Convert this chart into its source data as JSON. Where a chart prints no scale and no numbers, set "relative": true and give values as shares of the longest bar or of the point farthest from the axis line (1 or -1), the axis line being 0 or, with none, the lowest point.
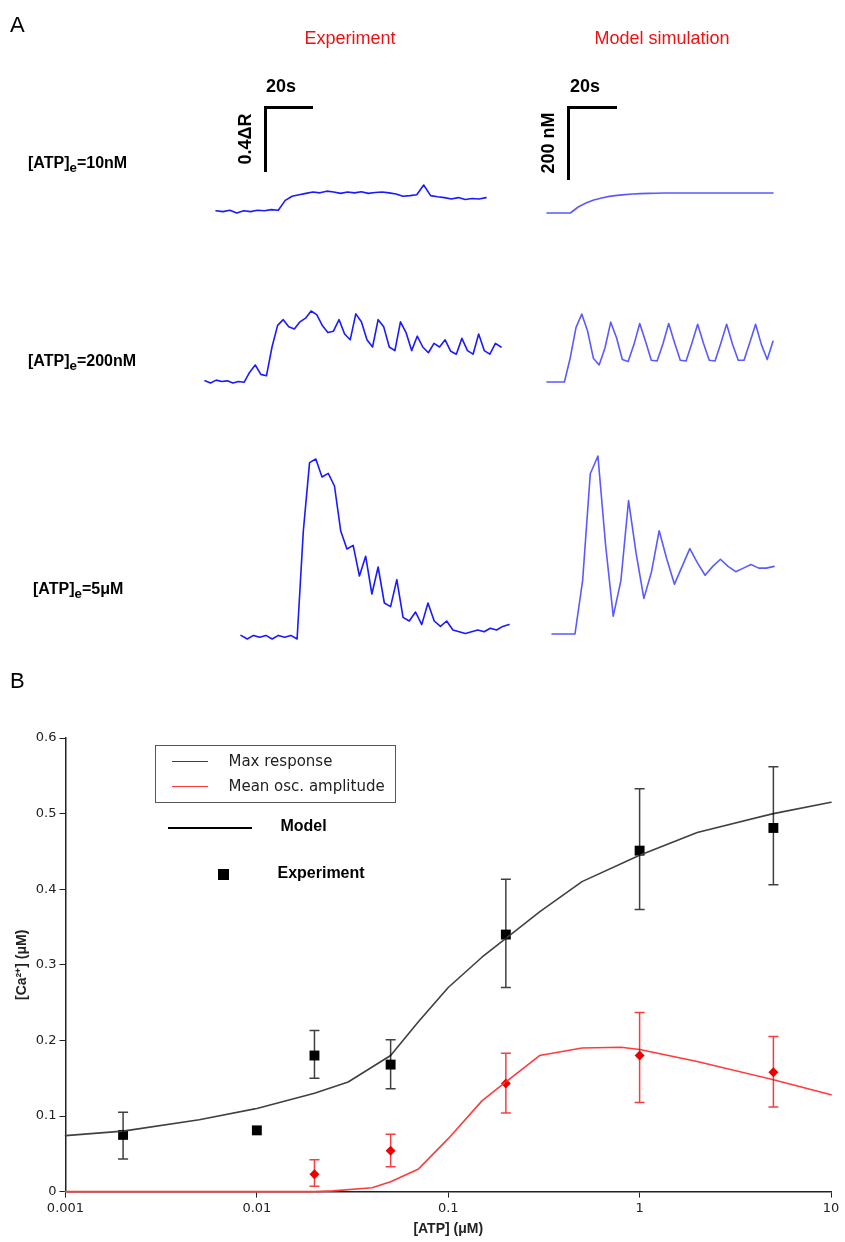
{
  "chart_data": [
    {
      "type": "line",
      "relative": true,
      "title": "Experiment",
      "ylabel": "[ATP]$_{e}$=10nM",
      "annotations": [
        "A",
        "20s",
        "0.4ΔR"
      ],
      "marker": "none",
      "categories": [
        null,
        null,
        null,
        null,
        null,
        null,
        null,
        null,
        null,
        null,
        null,
        null,
        null,
        null,
        null,
        null,
        null,
        null,
        null,
        null,
        null,
        null,
        null,
        null,
        null,
        null,
        null,
        null,
        null,
        null,
        null,
        null,
        null,
        null,
        null,
        null,
        null,
        null,
        null,
        null
      ],
      "series": [
        {
          "color": "#1a1aff",
          "values": [
            0.08,
            0.05,
            0.1,
            0.0,
            0.08,
            0.05,
            0.1,
            0.08,
            0.12,
            0.1,
            0.45,
            0.6,
            0.65,
            0.7,
            0.75,
            0.72,
            0.78,
            0.75,
            0.7,
            0.75,
            0.72,
            0.76,
            0.7,
            0.73,
            0.75,
            0.72,
            0.68,
            0.6,
            0.62,
            0.65,
            1.0,
            0.62,
            0.58,
            0.55,
            0.5,
            0.55,
            0.48,
            0.52,
            0.5,
            0.55
          ]
        }
      ]
    },
    {
      "type": "line",
      "relative": true,
      "title": "Model simulation",
      "annotations": [
        "20s",
        "200 nM"
      ],
      "marker": "none",
      "categories": [
        null,
        null,
        null,
        null,
        null,
        null,
        null,
        null,
        null,
        null,
        null,
        null,
        null,
        null,
        null,
        null,
        null,
        null,
        null,
        null,
        null,
        null,
        null,
        null,
        null,
        null,
        null,
        null,
        null,
        null
      ],
      "series": [
        {
          "color": "#5a5aff",
          "values": [
            0,
            0,
            0,
            0,
            0.3,
            0.5,
            0.65,
            0.75,
            0.83,
            0.88,
            0.92,
            0.95,
            0.97,
            0.98,
            0.99,
            1,
            1,
            1,
            1,
            1,
            1,
            1,
            1,
            1,
            1,
            1,
            1,
            1,
            1,
            1
          ]
        }
      ]
    },
    {
      "type": "line",
      "relative": true,
      "ylabel": "[ATP]$_{e}$=200nM",
      "marker": "none",
      "categories": [
        null,
        null,
        null,
        null,
        null,
        null,
        null,
        null,
        null,
        null,
        null,
        null,
        null,
        null,
        null,
        null,
        null,
        null,
        null,
        null,
        null,
        null,
        null,
        null,
        null,
        null,
        null,
        null,
        null,
        null,
        null,
        null,
        null,
        null,
        null,
        null,
        null,
        null,
        null,
        null,
        null,
        null,
        null,
        null,
        null,
        null,
        null,
        null,
        null,
        null,
        null,
        null,
        null,
        null
      ],
      "series": [
        {
          "color": "#1a1aff",
          "values": [
            0.03,
            0.0,
            0.04,
            0.02,
            0.03,
            0.0,
            0.02,
            0.01,
            0.15,
            0.25,
            0.12,
            0.1,
            0.5,
            0.8,
            0.88,
            0.78,
            0.75,
            0.85,
            0.9,
            1.0,
            0.95,
            0.8,
            0.7,
            0.72,
            0.88,
            0.68,
            0.6,
            0.96,
            0.85,
            0.6,
            0.5,
            0.88,
            0.78,
            0.5,
            0.45,
            0.85,
            0.7,
            0.45,
            0.65,
            0.5,
            0.42,
            0.55,
            0.5,
            0.6,
            0.44,
            0.4,
            0.62,
            0.45,
            0.4,
            0.68,
            0.45,
            0.4,
            0.55,
            0.5
          ]
        }
      ]
    },
    {
      "type": "line",
      "relative": true,
      "marker": "none",
      "categories": [
        null,
        null,
        null,
        null,
        null,
        null,
        null,
        null,
        null,
        null,
        null,
        null,
        null,
        null,
        null,
        null,
        null,
        null,
        null,
        null,
        null,
        null,
        null,
        null,
        null,
        null,
        null,
        null,
        null,
        null,
        null,
        null,
        null,
        null,
        null,
        null,
        null,
        null,
        null,
        null
      ],
      "series": [
        {
          "color": "#5a5aff",
          "values": [
            0,
            0,
            0,
            0,
            0.35,
            0.8,
            1.0,
            0.75,
            0.35,
            0.25,
            0.5,
            0.88,
            0.65,
            0.33,
            0.3,
            0.55,
            0.86,
            0.6,
            0.32,
            0.31,
            0.56,
            0.86,
            0.58,
            0.32,
            0.31,
            0.57,
            0.85,
            0.57,
            0.32,
            0.31,
            0.57,
            0.85,
            0.56,
            0.32,
            0.32,
            0.58,
            0.85,
            0.55,
            0.33,
            0.6
          ]
        }
      ]
    },
    {
      "type": "line",
      "relative": true,
      "ylabel": "[ATP]$_{e}$=5μM",
      "marker": "none",
      "categories": [
        null,
        null,
        null,
        null,
        null,
        null,
        null,
        null,
        null,
        null,
        null,
        null,
        null,
        null,
        null,
        null,
        null,
        null,
        null,
        null,
        null,
        null,
        null,
        null,
        null,
        null,
        null,
        null,
        null,
        null,
        null,
        null,
        null,
        null,
        null,
        null,
        null,
        null,
        null,
        null,
        null,
        null,
        null,
        null
      ],
      "series": [
        {
          "color": "#1a1aff",
          "values": [
            0.02,
            0.0,
            0.02,
            0.01,
            0.02,
            0.0,
            0.02,
            0.01,
            0.02,
            0.0,
            0.6,
            0.98,
            1.0,
            0.9,
            0.92,
            0.85,
            0.6,
            0.5,
            0.52,
            0.35,
            0.46,
            0.25,
            0.4,
            0.2,
            0.18,
            0.33,
            0.12,
            0.1,
            0.15,
            0.08,
            0.2,
            0.1,
            0.07,
            0.1,
            0.05,
            0.04,
            0.03,
            0.04,
            0.05,
            0.04,
            0.06,
            0.05,
            0.07,
            0.08
          ]
        }
      ]
    },
    {
      "type": "line",
      "relative": true,
      "marker": "none",
      "categories": [
        null,
        null,
        null,
        null,
        null,
        null,
        null,
        null,
        null,
        null,
        null,
        null,
        null,
        null,
        null,
        null,
        null,
        null,
        null,
        null,
        null,
        null,
        null,
        null,
        null,
        null,
        null,
        null,
        null,
        null
      ],
      "series": [
        {
          "color": "#5a5aff",
          "values": [
            0,
            0,
            0,
            0,
            0.3,
            0.9,
            1.0,
            0.5,
            0.1,
            0.3,
            0.75,
            0.45,
            0.2,
            0.35,
            0.58,
            0.42,
            0.28,
            0.38,
            0.48,
            0.4,
            0.33,
            0.38,
            0.42,
            0.38,
            0.35,
            0.37,
            0.39,
            0.37,
            0.37,
            0.38
          ]
        }
      ]
    },
    {
      "type": "line",
      "xlabel": "[ATP] (μM)",
      "ylabel": "[Ca²⁺] (μM)",
      "annotations": [
        "B",
        "Model",
        "Experiment"
      ],
      "log": "x",
      "legend": "top left",
      "marker": "none",
      "xlim": [
        0.001,
        10
      ],
      "xticks": [
        0.001,
        0.01,
        0.1,
        1,
        10
      ],
      "ylim": [
        0,
        0.6
      ],
      "yticks": [
        0,
        0.1,
        0.2,
        0.3,
        0.4,
        0.5,
        0.6
      ],
      "series": [
        {
          "name": "Max response",
          "color": "#404040",
          "x": [
            0.001,
            0.002,
            0.005,
            0.01,
            0.02,
            0.03,
            0.05,
            0.07,
            0.1,
            0.15,
            0.2,
            0.3,
            0.5,
            1,
            2,
            5,
            10
          ],
          "values": [
            0.074,
            0.08,
            0.095,
            0.11,
            0.13,
            0.145,
            0.18,
            0.225,
            0.27,
            0.31,
            0.335,
            0.37,
            0.41,
            0.445,
            0.475,
            0.5,
            0.515
          ]
        },
        {
          "name": "Mean osc. amplitude",
          "color": "#ff3b3b",
          "x": [
            0.001,
            0.02,
            0.025,
            0.04,
            0.05,
            0.07,
            0.1,
            0.15,
            0.2,
            0.3,
            0.5,
            0.8,
            1,
            2,
            5,
            10
          ],
          "values": [
            0,
            0,
            0.001,
            0.005,
            0.013,
            0.03,
            0.07,
            0.12,
            0.145,
            0.18,
            0.19,
            0.191,
            0.188,
            0.172,
            0.148,
            0.128
          ]
        },
        {
          "type": "scatter",
          "marker": "square",
          "color": "#000000",
          "x": [
            0.002,
            0.01,
            0.02,
            0.05,
            0.2,
            1,
            5
          ],
          "values": [
            0.075,
            0.081,
            0.18,
            0.168,
            0.34,
            0.451,
            0.481
          ],
          "errors": [
            [
              0.043,
              0.105
            ],
            null,
            [
              0.15,
              0.213
            ],
            [
              0.136,
              0.201
            ],
            [
              0.27,
              0.413
            ],
            [
              0.373,
              0.533
            ],
            [
              0.406,
              0.562
            ]
          ]
        },
        {
          "type": "scatter",
          "marker": "diamond",
          "color": "#ee0000",
          "x": [
            0.02,
            0.05,
            0.2,
            1,
            5
          ],
          "values": [
            0.023,
            0.054,
            0.143,
            0.18,
            0.158
          ],
          "errors": [
            [
              0.007,
              0.042
            ],
            [
              0.033,
              0.076
            ],
            [
              0.104,
              0.183
            ],
            [
              0.118,
              0.237
            ],
            [
              0.112,
              0.205
            ]
          ]
        }
      ]
    }
  ]
}
